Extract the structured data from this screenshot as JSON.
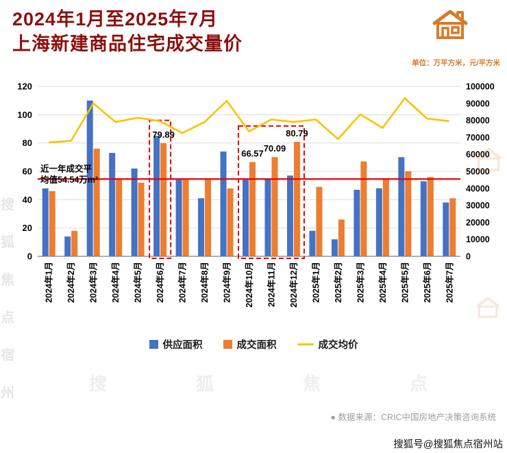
{
  "header": {
    "title_line1": "2024年1月至2025年7月",
    "title_line2": "上海新建商品住宅成交量价",
    "units_note": "单位：万平方米，元/平方米"
  },
  "colors": {
    "accent_orange": "#D9792A",
    "title_red": "#8B100C",
    "avg_line_red": "#E8000B",
    "bar_blue": "#4472C4",
    "bar_orange": "#ED7D31",
    "line_yellow": "#FFC000"
  },
  "chart_data": {
    "type": "bar+line",
    "title": "2024年1月至2025年7月上海新建商品住宅成交量价",
    "categories": [
      "2024年1月",
      "2024年2月",
      "2024年3月",
      "2024年4月",
      "2024年5月",
      "2024年6月",
      "2024年7月",
      "2024年8月",
      "2024年9月",
      "2024年10月",
      "2024年11月",
      "2024年12月",
      "2025年1月",
      "2025年2月",
      "2025年3月",
      "2025年4月",
      "2025年5月",
      "2025年6月",
      "2025年7月"
    ],
    "series": [
      {
        "name": "供应面积",
        "type": "bar",
        "axis": "left",
        "color": "#4472C4",
        "values": [
          48,
          14,
          110,
          73,
          62,
          85,
          54,
          41,
          74,
          54,
          55,
          57,
          18,
          12,
          47,
          48,
          70,
          53,
          38
        ]
      },
      {
        "name": "成交面积",
        "type": "bar",
        "axis": "left",
        "color": "#ED7D31",
        "values": [
          46,
          18,
          76,
          55,
          52,
          79.89,
          54,
          54,
          48,
          66.57,
          70.09,
          80.79,
          49,
          26,
          67,
          55,
          60,
          56,
          41
        ]
      },
      {
        "name": "成交均价",
        "type": "line",
        "axis": "right",
        "color": "#FFC000",
        "values": [
          67000,
          68000,
          90000,
          79000,
          81500,
          79500,
          72500,
          79000,
          91500,
          73500,
          80500,
          79000,
          80500,
          69000,
          83500,
          75500,
          93000,
          81000,
          79500
        ]
      }
    ],
    "left_axis": {
      "min": 0,
      "max": 120,
      "ticks": [
        0,
        20,
        40,
        60,
        80,
        100,
        120
      ]
    },
    "right_axis": {
      "min": 0,
      "max": 100000,
      "ticks": [
        0,
        10000,
        20000,
        30000,
        40000,
        50000,
        60000,
        70000,
        80000,
        90000,
        100000
      ]
    },
    "annotations": [
      {
        "category_index": 5,
        "text": "79.89"
      },
      {
        "category_index": 9,
        "text": "66.57"
      },
      {
        "category_index": 10,
        "text": "70.09"
      },
      {
        "category_index": 11,
        "text": "80.79"
      }
    ],
    "average_line": {
      "value": 54.54,
      "color": "#E8000B",
      "label_line1": "近一年成交平",
      "label_line2": "均值54.54万m²"
    },
    "highlight_boxes": [
      {
        "start_index": 5,
        "end_index": 5,
        "top_value": 96
      },
      {
        "start_index": 9,
        "end_index": 11,
        "top_value": 92
      }
    ],
    "legend_position": "bottom",
    "grid": true
  },
  "footer": {
    "source_bullet": "●",
    "source": "数据来源：CRIC中国房地产决策咨询系统",
    "watermark": "搜狐号@搜狐焦点宿州站"
  },
  "decor": {
    "left_watermark_chars": [
      "搜",
      "狐",
      "焦",
      "点",
      "宿",
      "州"
    ],
    "bottom_watermark_chars": [
      "搜",
      "狐",
      "焦",
      "点"
    ]
  }
}
